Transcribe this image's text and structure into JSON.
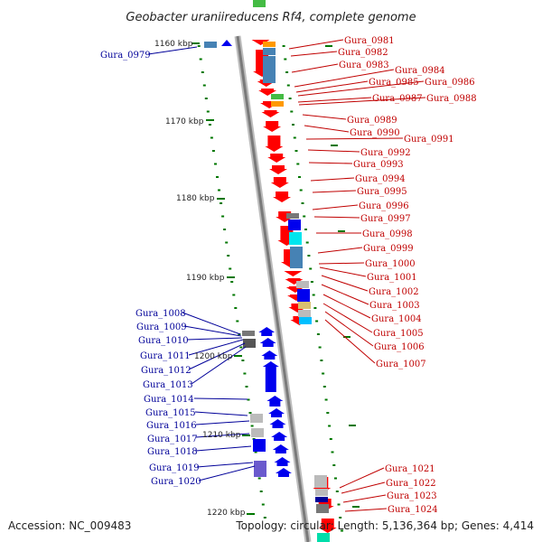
{
  "title": "Geobacter uraniireducens Rf4, complete genome",
  "footer": {
    "accession": "Accession: NC_009483",
    "summary": "Topology: circular; Length: 5,136,364 bp; Genes: 4,414"
  },
  "colors": {
    "forward_gene": "#0000ee",
    "reverse_gene": "#ff0000",
    "right_label": "#c00000",
    "left_label": "#000099",
    "scale_dots": "#007700",
    "backbone": "#888888"
  },
  "scale_ticks": [
    "1160 kbp",
    "1170 kbp",
    "1180 kbp",
    "1190 kbp",
    "1200 kbp",
    "1210 kbp",
    "1220 kbp"
  ],
  "right_labels": [
    "Gura_0981",
    "Gura_0982",
    "Gura_0983",
    "Gura_0984",
    "Gura_0985",
    "Gura_0986",
    "Gura_0987",
    "Gura_0988",
    "Gura_0989",
    "Gura_0990",
    "Gura_0991",
    "Gura_0992",
    "Gura_0993",
    "Gura_0994",
    "Gura_0995",
    "Gura_0996",
    "Gura_0997",
    "Gura_0998",
    "Gura_0999",
    "Gura_1000",
    "Gura_1001",
    "Gura_1002",
    "Gura_1003",
    "Gura_1004",
    "Gura_1005",
    "Gura_1006",
    "Gura_1007",
    "Gura_1021",
    "Gura_1022",
    "Gura_1023",
    "Gura_1024"
  ],
  "left_labels": [
    "Gura_0979",
    "Gura_1008",
    "Gura_1009",
    "Gura_1010",
    "Gura_1011",
    "Gura_1012",
    "Gura_1013",
    "Gura_1014",
    "Gura_1015",
    "Gura_1016",
    "Gura_1017",
    "Gura_1018",
    "Gura_1019",
    "Gura_1020"
  ]
}
